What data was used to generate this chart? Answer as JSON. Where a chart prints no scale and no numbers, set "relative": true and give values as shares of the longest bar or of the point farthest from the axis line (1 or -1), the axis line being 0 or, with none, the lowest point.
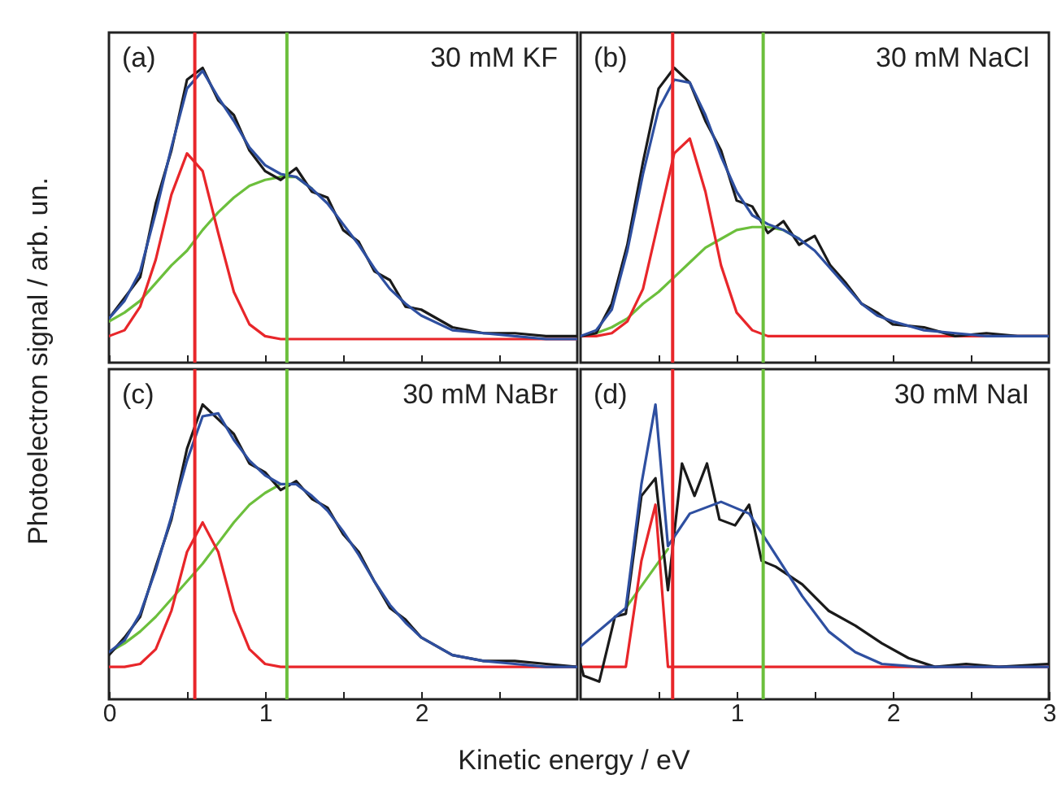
{
  "chart_data": [
    {
      "type": "line",
      "relative": true,
      "tick_labels": false,
      "grid": false,
      "ylabel": "Photoelectron signal / arb. un.",
      "annotations": [
        "(a)",
        "30 mM KF"
      ],
      "xlim": [
        0,
        3
      ],
      "xticks": [
        0,
        {
          "value": 0.5,
          "label": null
        },
        1,
        {
          "value": 1.5,
          "label": null
        },
        2,
        {
          "value": 2.5,
          "label": null
        }
      ],
      "x": [
        0,
        0.1,
        0.2,
        0.3,
        0.4,
        0.5,
        0.6,
        0.7,
        0.8,
        0.9,
        1.0,
        1.1,
        1.2,
        1.3,
        1.4,
        1.5,
        1.6,
        1.7,
        1.8,
        1.9,
        2.0,
        2.2,
        2.4,
        2.6,
        2.8,
        3.0
      ],
      "series": [
        {
          "color": "#6cbf3c",
          "values": [
            0.14,
            0.17,
            0.21,
            0.27,
            0.33,
            0.38,
            0.45,
            0.51,
            0.56,
            0.6,
            0.62,
            0.63,
            0.63,
            0.59,
            null,
            null,
            null,
            null,
            null,
            null,
            null,
            null,
            null,
            null,
            null,
            null
          ]
        },
        {
          "color": "#e8262a",
          "values": [
            0.09,
            0.11,
            0.19,
            0.35,
            0.57,
            0.71,
            0.65,
            0.44,
            0.24,
            0.13,
            0.09,
            0.08,
            0.08,
            0.08,
            0.08,
            0.08,
            0.08,
            0.08,
            0.08,
            0.08,
            0.08,
            0.08,
            0.08,
            0.08,
            0.08,
            0.08
          ]
        },
        {
          "color": "#1a1a1a",
          "values": [
            0.15,
            0.22,
            0.29,
            0.54,
            0.72,
            0.96,
            1.0,
            0.89,
            0.84,
            0.72,
            0.65,
            0.62,
            0.66,
            0.58,
            0.56,
            0.45,
            0.41,
            0.31,
            0.28,
            0.19,
            0.18,
            0.12,
            0.1,
            0.1,
            0.09,
            0.09
          ]
        },
        {
          "color": "#2e4fa0",
          "values": [
            0.15,
            0.21,
            0.31,
            0.51,
            0.73,
            0.93,
            0.99,
            0.9,
            0.82,
            0.73,
            0.67,
            0.64,
            0.63,
            0.59,
            0.54,
            0.47,
            0.4,
            0.32,
            0.25,
            0.2,
            0.16,
            0.11,
            0.1,
            0.09,
            0.08,
            0.08
          ]
        }
      ],
      "ref_lines": [
        {
          "axis": "x",
          "value": 0.55,
          "color": "#e8262a"
        },
        {
          "axis": "x",
          "value": 1.14,
          "color": "#6cbf3c"
        }
      ]
    },
    {
      "type": "line",
      "relative": true,
      "tick_labels": false,
      "grid": false,
      "annotations": [
        "(b)",
        "30 mM NaCl"
      ],
      "xlim": [
        0,
        3
      ],
      "xticks": [
        {
          "value": 0.5,
          "label": null
        },
        1,
        {
          "value": 1.5,
          "label": null
        },
        2,
        {
          "value": 2.5,
          "label": null
        }
      ],
      "x": [
        0,
        0.1,
        0.2,
        0.3,
        0.4,
        0.5,
        0.6,
        0.7,
        0.8,
        0.9,
        1.0,
        1.1,
        1.2,
        1.3,
        1.4,
        1.5,
        1.6,
        1.7,
        1.8,
        1.9,
        2.0,
        2.2,
        2.4,
        2.6,
        2.8,
        3.0
      ],
      "series": [
        {
          "color": "#6cbf3c",
          "values": [
            0.09,
            0.1,
            0.12,
            0.15,
            0.2,
            0.24,
            0.29,
            0.34,
            0.39,
            0.42,
            0.45,
            0.46,
            0.46,
            0.45,
            0.42,
            null,
            null,
            null,
            null,
            null,
            null,
            null,
            null,
            null,
            null,
            null
          ]
        },
        {
          "color": "#e8262a",
          "values": [
            0.09,
            0.09,
            0.1,
            0.14,
            0.25,
            0.48,
            0.71,
            0.76,
            0.58,
            0.33,
            0.17,
            0.11,
            0.09,
            0.09,
            0.09,
            0.09,
            0.09,
            0.09,
            0.09,
            0.09,
            0.09,
            0.09,
            0.09,
            0.09,
            0.09,
            0.09
          ]
        },
        {
          "color": "#1a1a1a",
          "values": [
            0.09,
            0.1,
            0.2,
            0.4,
            0.68,
            0.93,
            1.0,
            0.95,
            0.82,
            0.72,
            0.55,
            0.53,
            0.44,
            0.48,
            0.4,
            0.43,
            0.33,
            0.27,
            0.2,
            0.17,
            0.13,
            0.12,
            0.09,
            0.1,
            0.09,
            0.09
          ]
        },
        {
          "color": "#2e4fa0",
          "values": [
            0.09,
            0.11,
            0.18,
            0.38,
            0.64,
            0.86,
            0.96,
            0.95,
            0.84,
            0.7,
            0.58,
            0.5,
            0.47,
            0.45,
            0.42,
            0.38,
            0.32,
            0.26,
            0.2,
            0.16,
            0.14,
            0.11,
            0.1,
            0.09,
            0.09,
            0.09
          ]
        }
      ],
      "ref_lines": [
        {
          "axis": "x",
          "value": 0.59,
          "color": "#e8262a"
        },
        {
          "axis": "x",
          "value": 1.17,
          "color": "#6cbf3c"
        }
      ]
    },
    {
      "type": "line",
      "relative": true,
      "tick_labels": "x",
      "grid": false,
      "xlabel": "Kinetic energy / eV",
      "annotations": [
        "(c)",
        "30 mM NaBr"
      ],
      "xlim": [
        0,
        3
      ],
      "xticks": [
        0,
        {
          "value": 0.5,
          "label": null
        },
        1,
        {
          "value": 1.5,
          "label": null
        },
        2,
        {
          "value": 2.5,
          "label": null
        }
      ],
      "x": [
        0,
        0.1,
        0.2,
        0.3,
        0.4,
        0.5,
        0.6,
        0.7,
        0.8,
        0.9,
        1.0,
        1.1,
        1.2,
        1.3,
        1.4,
        1.5,
        1.6,
        1.7,
        1.8,
        1.9,
        2.0,
        2.2,
        2.4,
        2.6,
        2.8,
        3.0
      ],
      "series": [
        {
          "color": "#6cbf3c",
          "values": [
            0.16,
            0.19,
            0.23,
            0.28,
            0.34,
            0.4,
            0.46,
            0.53,
            0.6,
            0.66,
            0.7,
            0.73,
            null,
            null,
            null,
            null,
            null,
            null,
            null,
            null,
            null,
            null,
            null,
            null,
            null,
            null
          ]
        },
        {
          "color": "#e8262a",
          "values": [
            0.11,
            0.11,
            0.12,
            0.17,
            0.3,
            0.5,
            0.6,
            0.5,
            0.3,
            0.17,
            0.12,
            0.11,
            0.11,
            0.11,
            0.11,
            0.11,
            0.11,
            0.11,
            0.11,
            0.11,
            0.11,
            0.11,
            0.11,
            0.11,
            0.11,
            0.11
          ]
        },
        {
          "color": "#1a1a1a",
          "values": [
            0.15,
            0.21,
            0.28,
            0.45,
            0.61,
            0.85,
            1.0,
            0.95,
            0.9,
            0.8,
            0.77,
            0.71,
            0.74,
            0.68,
            0.65,
            0.56,
            0.5,
            0.4,
            0.31,
            0.27,
            0.21,
            0.15,
            0.13,
            0.13,
            0.12,
            0.11
          ]
        },
        {
          "color": "#2e4fa0",
          "values": [
            0.16,
            0.2,
            0.29,
            0.44,
            0.62,
            0.81,
            0.96,
            0.97,
            0.88,
            0.81,
            0.76,
            0.73,
            0.73,
            0.69,
            0.64,
            0.57,
            0.49,
            0.4,
            0.32,
            0.26,
            0.21,
            0.15,
            0.13,
            0.12,
            0.11,
            0.11
          ]
        }
      ],
      "ref_lines": [
        {
          "axis": "x",
          "value": 0.55,
          "color": "#e8262a"
        },
        {
          "axis": "x",
          "value": 1.14,
          "color": "#6cbf3c"
        }
      ]
    },
    {
      "type": "line",
      "relative": true,
      "tick_labels": "x",
      "grid": false,
      "annotations": [
        "(d)",
        "30 mM NaI"
      ],
      "xlim": [
        0,
        3
      ],
      "xticks": [
        {
          "value": 0.5,
          "label": null
        },
        1,
        {
          "value": 1.5,
          "label": null
        },
        2,
        {
          "value": 2.5,
          "label": null
        },
        3
      ],
      "series": [
        {
          "color": "#6cbf3c",
          "x": [
            0.29,
            0.56
          ],
          "values": [
            0.31,
            0.51
          ]
        },
        {
          "color": "#e8262a",
          "x": [
            0,
            0.29,
            0.39,
            0.48,
            0.56,
            3.0
          ],
          "values": [
            0.11,
            0.11,
            0.47,
            0.66,
            0.11,
            0.11
          ]
        },
        {
          "color": "#1a1a1a",
          "x": [
            0,
            0.02,
            0.12,
            0.22,
            0.29,
            0.39,
            0.48,
            0.56,
            0.65,
            0.73,
            0.81,
            0.89,
            0.99,
            1.08,
            1.16,
            1.25,
            1.42,
            1.59,
            1.76,
            1.93,
            2.1,
            2.27,
            2.47,
            2.68,
            3.0
          ],
          "values": [
            0.12,
            0.08,
            0.06,
            0.28,
            0.29,
            0.69,
            0.75,
            0.37,
            0.8,
            0.69,
            0.8,
            0.61,
            0.59,
            0.66,
            0.47,
            0.45,
            0.39,
            0.3,
            0.25,
            0.19,
            0.14,
            0.11,
            0.12,
            0.11,
            0.12
          ]
        },
        {
          "color": "#2e4fa0",
          "x": [
            0,
            0.29,
            0.39,
            0.48,
            0.56,
            0.7,
            0.9,
            1.08,
            1.25,
            1.42,
            1.59,
            1.76,
            1.93,
            2.17,
            3.0
          ],
          "values": [
            0.18,
            0.31,
            0.73,
            1.0,
            0.52,
            0.63,
            0.67,
            0.63,
            0.49,
            0.35,
            0.23,
            0.16,
            0.12,
            0.11,
            0.11
          ]
        }
      ],
      "ref_lines": [
        {
          "axis": "x",
          "value": 0.59,
          "color": "#e8262a"
        },
        {
          "axis": "x",
          "value": 1.17,
          "color": "#6cbf3c"
        }
      ]
    }
  ]
}
